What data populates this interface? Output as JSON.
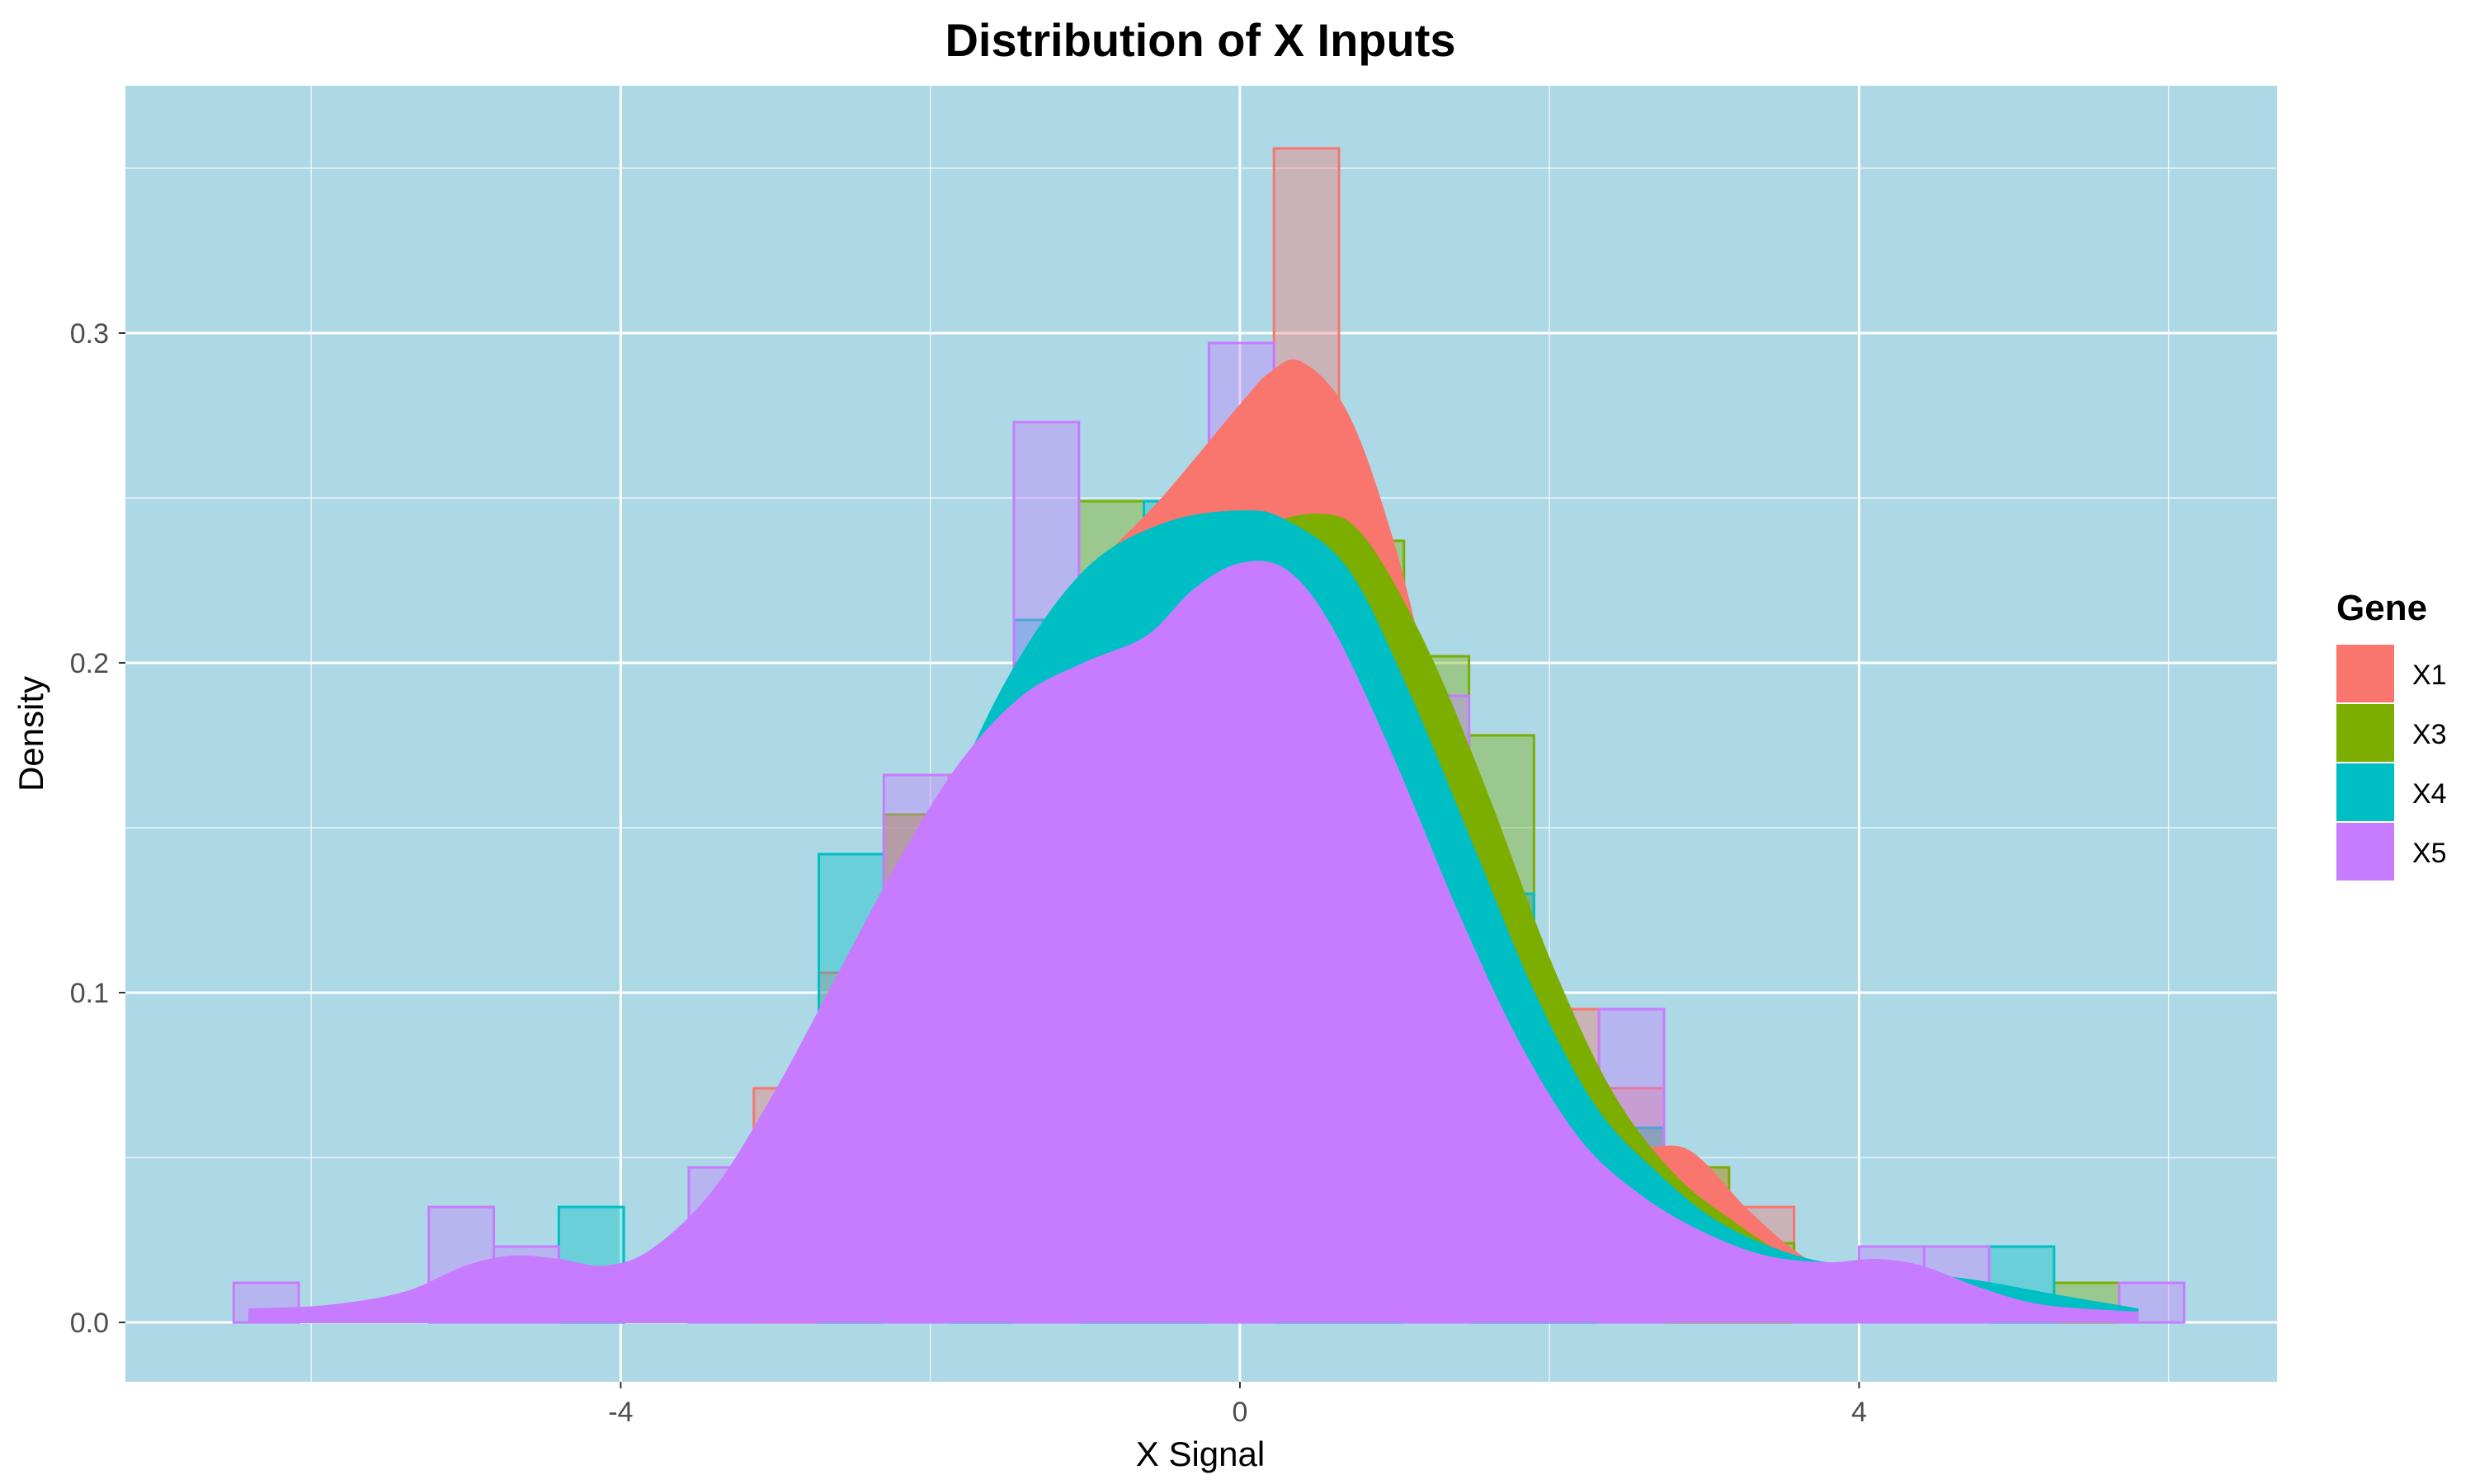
{
  "chart_data": {
    "type": "area",
    "title": "Distribution of X Inputs",
    "xlabel": "X Signal",
    "ylabel": "Density",
    "xlim": [
      -7.2,
      6.7
    ],
    "ylim": [
      -0.018,
      0.375
    ],
    "x_ticks": [
      -4,
      0,
      4
    ],
    "x_tick_labels": [
      "-4",
      "0",
      "4"
    ],
    "y_ticks": [
      0.0,
      0.1,
      0.2,
      0.3
    ],
    "y_tick_labels": [
      "0.0",
      "0.1",
      "0.2",
      "0.3"
    ],
    "grid": true,
    "background": "#ADD8E6",
    "legend": {
      "title": "Gene",
      "position": "right"
    },
    "histogram_bin_width": 0.42,
    "series": [
      {
        "name": "X1",
        "color": "#F8766D",
        "histogram": [
          {
            "x0": -3.14,
            "y": 0.071
          },
          {
            "x0": -2.72,
            "y": 0.106
          },
          {
            "x0": -2.3,
            "y": 0.154
          },
          {
            "x0": -1.88,
            "y": 0.166
          },
          {
            "x0": -1.46,
            "y": 0.19
          },
          {
            "x0": -1.04,
            "y": 0.214
          },
          {
            "x0": -0.62,
            "y": 0.226
          },
          {
            "x0": -0.2,
            "y": 0.262
          },
          {
            "x0": 0.22,
            "y": 0.356
          },
          {
            "x0": 0.64,
            "y": 0.19
          },
          {
            "x0": 1.06,
            "y": 0.166
          },
          {
            "x0": 1.48,
            "y": 0.13
          },
          {
            "x0": 1.9,
            "y": 0.095
          },
          {
            "x0": 2.32,
            "y": 0.071
          },
          {
            "x0": 2.74,
            "y": 0.047
          },
          {
            "x0": 3.16,
            "y": 0.035
          }
        ],
        "density": {
          "x": [
            -6.4,
            -5.6,
            -5.0,
            -4.2,
            -3.6,
            -3.0,
            -2.5,
            -2.0,
            -1.5,
            -1.0,
            -0.5,
            0.0,
            0.2,
            0.4,
            0.7,
            1.0,
            1.3,
            1.7,
            2.1,
            2.5,
            2.9,
            3.3,
            3.7,
            4.2,
            4.8,
            5.4,
            5.8
          ],
          "y": [
            0.003,
            0.002,
            0.001,
            0.002,
            0.012,
            0.04,
            0.085,
            0.14,
            0.19,
            0.225,
            0.25,
            0.278,
            0.288,
            0.291,
            0.275,
            0.235,
            0.18,
            0.125,
            0.08,
            0.055,
            0.052,
            0.033,
            0.018,
            0.01,
            0.006,
            0.004,
            0.003
          ]
        }
      },
      {
        "name": "X3",
        "color": "#7CAE00",
        "histogram": [
          {
            "x0": -2.3,
            "y": 0.154
          },
          {
            "x0": -1.88,
            "y": 0.15
          },
          {
            "x0": -1.46,
            "y": 0.2
          },
          {
            "x0": -1.04,
            "y": 0.249
          },
          {
            "x0": -0.62,
            "y": 0.237
          },
          {
            "x0": -0.2,
            "y": 0.225
          },
          {
            "x0": 0.22,
            "y": 0.214
          },
          {
            "x0": 0.64,
            "y": 0.237
          },
          {
            "x0": 1.06,
            "y": 0.202
          },
          {
            "x0": 1.48,
            "y": 0.178
          },
          {
            "x0": 1.9,
            "y": 0.071
          },
          {
            "x0": 2.32,
            "y": 0.059
          },
          {
            "x0": 2.74,
            "y": 0.047
          },
          {
            "x0": 3.16,
            "y": 0.024
          },
          {
            "x0": 5.26,
            "y": 0.012
          }
        ],
        "density": {
          "x": [
            -6.4,
            -5.6,
            -5.0,
            -4.2,
            -3.6,
            -3.0,
            -2.5,
            -2.0,
            -1.5,
            -1.0,
            -0.5,
            0.0,
            0.5,
            0.8,
            1.2,
            1.6,
            2.0,
            2.4,
            2.8,
            3.2,
            3.6,
            4.0,
            4.6,
            5.2,
            5.8
          ],
          "y": [
            0.003,
            0.002,
            0.002,
            0.003,
            0.012,
            0.04,
            0.085,
            0.14,
            0.19,
            0.222,
            0.235,
            0.24,
            0.245,
            0.238,
            0.205,
            0.16,
            0.11,
            0.07,
            0.045,
            0.03,
            0.018,
            0.01,
            0.007,
            0.005,
            0.003
          ]
        }
      },
      {
        "name": "X4",
        "color": "#00BFC4",
        "histogram": [
          {
            "x0": -4.4,
            "y": 0.035
          },
          {
            "x0": -2.72,
            "y": 0.142
          },
          {
            "x0": -2.3,
            "y": 0.13
          },
          {
            "x0": -1.88,
            "y": 0.15
          },
          {
            "x0": -1.46,
            "y": 0.213
          },
          {
            "x0": -1.04,
            "y": 0.225
          },
          {
            "x0": -0.62,
            "y": 0.249
          },
          {
            "x0": -0.2,
            "y": 0.237
          },
          {
            "x0": 0.22,
            "y": 0.2
          },
          {
            "x0": 0.64,
            "y": 0.19
          },
          {
            "x0": 1.06,
            "y": 0.166
          },
          {
            "x0": 1.48,
            "y": 0.13
          },
          {
            "x0": 1.9,
            "y": 0.071
          },
          {
            "x0": 2.32,
            "y": 0.059
          },
          {
            "x0": 4.84,
            "y": 0.023
          }
        ],
        "density": {
          "x": [
            -6.4,
            -5.6,
            -5.0,
            -4.6,
            -4.2,
            -3.6,
            -3.0,
            -2.5,
            -2.0,
            -1.5,
            -1.0,
            -0.5,
            0.0,
            0.3,
            0.7,
            1.1,
            1.5,
            1.9,
            2.3,
            2.7,
            3.1,
            3.6,
            4.1,
            4.7,
            5.3,
            5.8
          ],
          "y": [
            0.003,
            0.002,
            0.005,
            0.012,
            0.014,
            0.02,
            0.045,
            0.09,
            0.145,
            0.195,
            0.228,
            0.242,
            0.246,
            0.243,
            0.228,
            0.19,
            0.145,
            0.1,
            0.065,
            0.045,
            0.03,
            0.02,
            0.016,
            0.013,
            0.008,
            0.004
          ]
        }
      },
      {
        "name": "X5",
        "color": "#C77CFF",
        "histogram": [
          {
            "x0": -6.5,
            "y": 0.012
          },
          {
            "x0": -5.24,
            "y": 0.035
          },
          {
            "x0": -4.82,
            "y": 0.023
          },
          {
            "x0": -3.56,
            "y": 0.047
          },
          {
            "x0": -2.3,
            "y": 0.166
          },
          {
            "x0": -1.46,
            "y": 0.273
          },
          {
            "x0": -0.2,
            "y": 0.297
          },
          {
            "x0": 1.06,
            "y": 0.19
          },
          {
            "x0": 2.32,
            "y": 0.095
          },
          {
            "x0": 3.58,
            "y": 0.012
          },
          {
            "x0": 4.0,
            "y": 0.023
          },
          {
            "x0": 4.42,
            "y": 0.023
          },
          {
            "x0": 5.68,
            "y": 0.012
          }
        ],
        "density": {
          "x": [
            -6.4,
            -5.9,
            -5.4,
            -5.0,
            -4.7,
            -4.4,
            -4.1,
            -3.8,
            -3.4,
            -3.0,
            -2.6,
            -2.2,
            -1.8,
            -1.4,
            -1.0,
            -0.6,
            -0.3,
            0.0,
            0.3,
            0.6,
            1.0,
            1.4,
            1.8,
            2.2,
            2.6,
            3.0,
            3.4,
            3.8,
            4.1,
            4.4,
            4.8,
            5.2,
            5.8
          ],
          "y": [
            0.004,
            0.005,
            0.009,
            0.017,
            0.02,
            0.019,
            0.017,
            0.022,
            0.04,
            0.07,
            0.105,
            0.14,
            0.17,
            0.19,
            0.2,
            0.208,
            0.222,
            0.23,
            0.228,
            0.21,
            0.17,
            0.125,
            0.085,
            0.055,
            0.038,
            0.027,
            0.02,
            0.018,
            0.019,
            0.017,
            0.01,
            0.005,
            0.003
          ]
        }
      }
    ]
  }
}
